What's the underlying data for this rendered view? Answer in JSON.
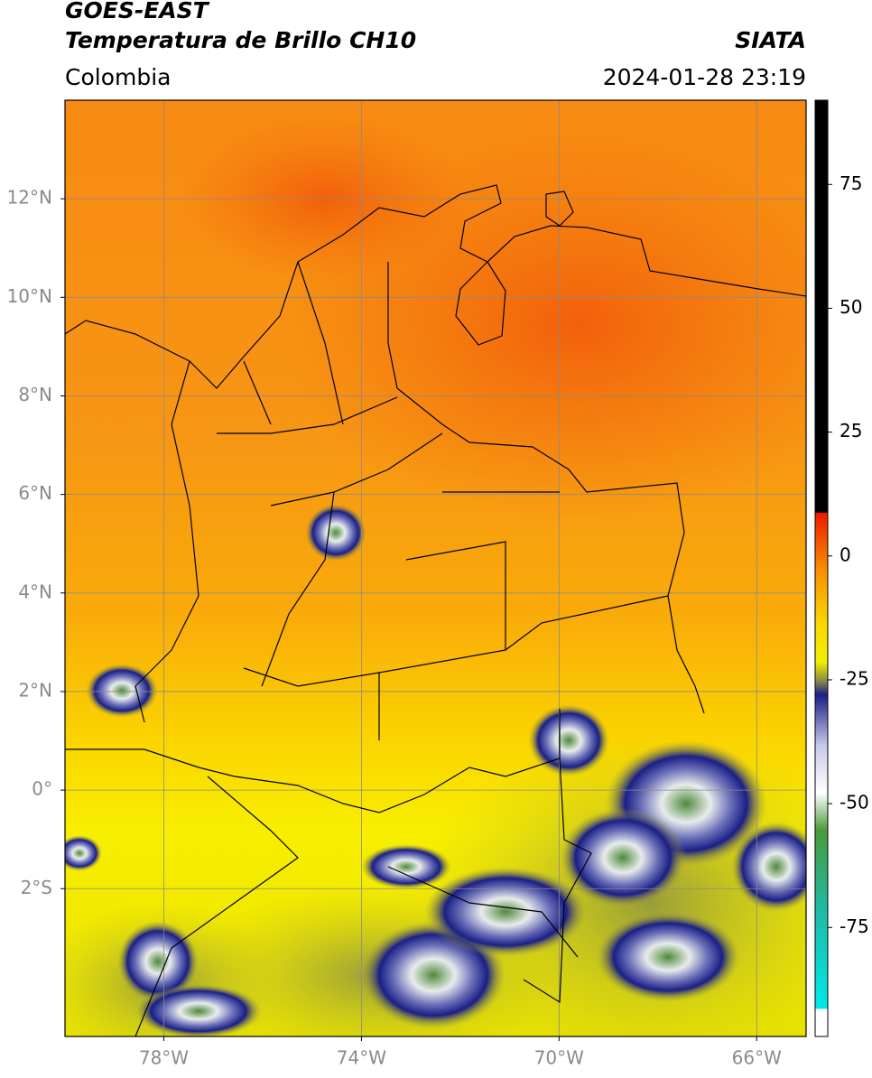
{
  "header": {
    "title": "GOES-EAST",
    "subtitle": "Temperatura de Brillo CH10",
    "source": "SIATA",
    "region": "Colombia",
    "datetime": "2024-01-28 23:19"
  },
  "map": {
    "xlim": [
      -80,
      -65
    ],
    "ylim": [
      -5,
      14
    ],
    "grid": true,
    "xticks": [
      {
        "value": -78,
        "label": "78°W"
      },
      {
        "value": -74,
        "label": "74°W"
      },
      {
        "value": -70,
        "label": "70°W"
      },
      {
        "value": -66,
        "label": "66°W"
      }
    ],
    "yticks": [
      {
        "value": 12,
        "label": "12°N"
      },
      {
        "value": 10,
        "label": "10°N"
      },
      {
        "value": 8,
        "label": "8°N"
      },
      {
        "value": 6,
        "label": "6°N"
      },
      {
        "value": 4,
        "label": "4°N"
      },
      {
        "value": 2,
        "label": "2°N"
      },
      {
        "value": 0,
        "label": "0°"
      },
      {
        "value": -2,
        "label": "2°S"
      }
    ]
  },
  "colorbar": {
    "lim": [
      -97,
      92
    ],
    "ticks": [
      75,
      50,
      25,
      0,
      -25,
      -50,
      -75
    ]
  }
}
